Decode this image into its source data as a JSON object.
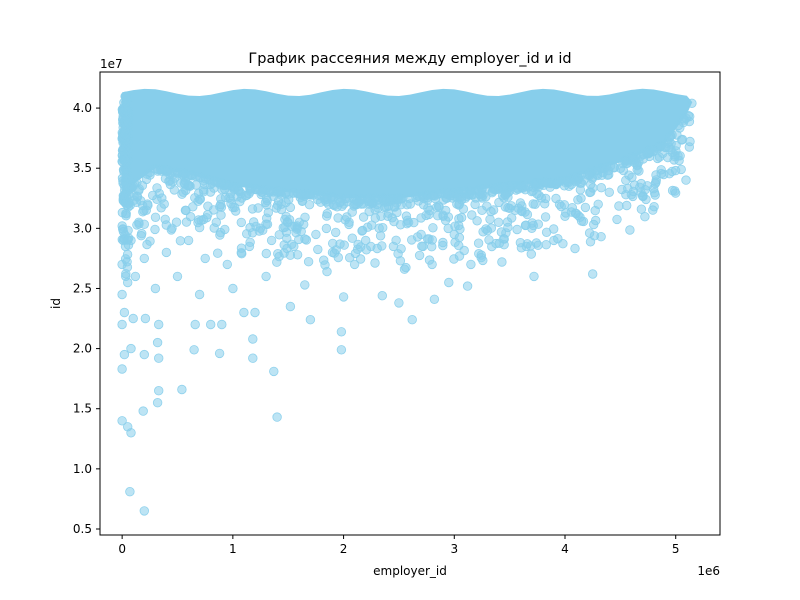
{
  "chart_data": {
    "type": "scatter",
    "title": "График рассеяния между employer_id и id",
    "xlabel": "employer_id",
    "ylabel": "id",
    "x_offset_label": "1e6",
    "y_offset_label": "1e7",
    "x_ticks": [
      0,
      1,
      2,
      3,
      4,
      5
    ],
    "y_ticks": [
      0.5,
      1.0,
      1.5,
      2.0,
      2.5,
      3.0,
      3.5,
      4.0
    ],
    "xlim": [
      -0.2,
      5.4
    ],
    "ylim": [
      0.45,
      4.3
    ],
    "grid": false,
    "point_color": "#87ceeb",
    "point_alpha": 0.55,
    "band": {
      "x_start": 0.0,
      "x_end": 5.15,
      "y_top": 4.13,
      "lower_edge": [
        [
          0.0,
          3.3
        ],
        [
          0.3,
          3.5
        ],
        [
          0.6,
          3.45
        ],
        [
          1.0,
          3.35
        ],
        [
          1.5,
          3.3
        ],
        [
          2.0,
          3.25
        ],
        [
          2.5,
          3.25
        ],
        [
          3.0,
          3.3
        ],
        [
          3.5,
          3.35
        ],
        [
          4.0,
          3.4
        ],
        [
          4.5,
          3.55
        ],
        [
          4.9,
          3.7
        ],
        [
          5.1,
          3.95
        ],
        [
          5.15,
          4.05
        ]
      ]
    },
    "outliers": [
      [
        0.0,
        1.4
      ],
      [
        0.05,
        1.35
      ],
      [
        0.08,
        1.3
      ],
      [
        0.07,
        0.81
      ],
      [
        0.2,
        0.65
      ],
      [
        0.19,
        1.48
      ],
      [
        0.32,
        1.55
      ],
      [
        0.33,
        1.65
      ],
      [
        0.54,
        1.66
      ],
      [
        1.37,
        1.81
      ],
      [
        1.4,
        1.43
      ],
      [
        0.0,
        1.83
      ],
      [
        0.02,
        1.95
      ],
      [
        0.08,
        2.0
      ],
      [
        0.2,
        1.95
      ],
      [
        0.32,
        2.05
      ],
      [
        0.33,
        1.92
      ],
      [
        0.65,
        1.99
      ],
      [
        0.88,
        1.96
      ],
      [
        1.18,
        1.92
      ],
      [
        1.98,
        1.99
      ],
      [
        1.98,
        2.14
      ],
      [
        1.18,
        2.08
      ],
      [
        0.0,
        2.2
      ],
      [
        0.02,
        2.3
      ],
      [
        0.1,
        2.25
      ],
      [
        0.21,
        2.25
      ],
      [
        0.33,
        2.2
      ],
      [
        0.66,
        2.2
      ],
      [
        0.8,
        2.2
      ],
      [
        0.9,
        2.2
      ],
      [
        1.1,
        2.3
      ],
      [
        1.2,
        2.3
      ],
      [
        1.52,
        2.35
      ],
      [
        1.7,
        2.24
      ],
      [
        2.0,
        2.43
      ],
      [
        2.35,
        2.44
      ],
      [
        2.5,
        2.38
      ],
      [
        2.62,
        2.24
      ],
      [
        2.82,
        2.41
      ],
      [
        2.95,
        2.55
      ],
      [
        3.12,
        2.52
      ],
      [
        3.43,
        2.72
      ],
      [
        3.72,
        2.6
      ],
      [
        4.25,
        2.62
      ],
      [
        0.0,
        2.45
      ],
      [
        0.05,
        2.55
      ],
      [
        0.12,
        2.6
      ],
      [
        0.3,
        2.5
      ],
      [
        0.5,
        2.6
      ],
      [
        0.7,
        2.45
      ],
      [
        1.0,
        2.5
      ],
      [
        1.3,
        2.6
      ],
      [
        1.65,
        2.53
      ],
      [
        1.85,
        2.64
      ],
      [
        2.1,
        2.7
      ],
      [
        2.55,
        2.66
      ],
      [
        2.8,
        2.7
      ],
      [
        3.15,
        2.7
      ],
      [
        3.65,
        2.85
      ],
      [
        3.9,
        2.9
      ],
      [
        4.15,
        3.06
      ],
      [
        4.55,
        3.28
      ],
      [
        4.8,
        3.33
      ],
      [
        0.0,
        2.7
      ],
      [
        0.03,
        2.85
      ],
      [
        0.08,
        2.9
      ],
      [
        0.2,
        2.75
      ],
      [
        0.4,
        2.8
      ],
      [
        0.6,
        2.9
      ],
      [
        0.75,
        2.75
      ],
      [
        0.95,
        2.7
      ],
      [
        1.15,
        2.85
      ],
      [
        1.35,
        2.9
      ],
      [
        1.55,
        2.85
      ],
      [
        1.75,
        2.95
      ],
      [
        1.9,
        2.8
      ],
      [
        2.2,
        2.9
      ],
      [
        2.45,
        2.85
      ],
      [
        2.7,
        2.95
      ],
      [
        3.0,
        2.95
      ],
      [
        3.3,
        2.98
      ],
      [
        3.7,
        3.0
      ],
      [
        4.0,
        3.1
      ],
      [
        4.3,
        3.2
      ],
      [
        4.6,
        3.28
      ],
      [
        0.15,
        3.05
      ],
      [
        0.45,
        3.0
      ],
      [
        0.85,
        3.05
      ],
      [
        1.25,
        3.0
      ],
      [
        1.6,
        3.05
      ],
      [
        2.05,
        3.05
      ],
      [
        2.4,
        3.1
      ],
      [
        2.9,
        3.1
      ],
      [
        3.25,
        3.15
      ],
      [
        3.55,
        3.15
      ],
      [
        3.95,
        3.2
      ],
      [
        4.4,
        3.3
      ]
    ]
  }
}
